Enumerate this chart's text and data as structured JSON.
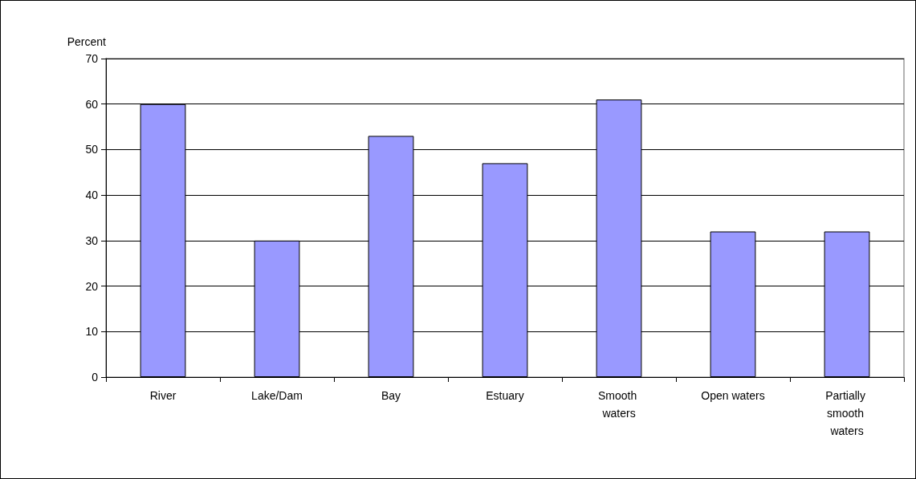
{
  "chart_data": {
    "type": "bar",
    "ylabel": "Percent",
    "categories": [
      "River",
      "Lake/Dam",
      "Bay",
      "Estuary",
      "Smooth waters",
      "Open waters",
      "Partially smooth waters"
    ],
    "values": [
      60,
      30,
      53,
      47,
      61,
      32,
      32
    ],
    "color": "#9999ff",
    "ylim": [
      0,
      70
    ],
    "yticks": [
      0,
      10,
      20,
      30,
      40,
      50,
      60,
      70
    ],
    "grid": "y"
  }
}
